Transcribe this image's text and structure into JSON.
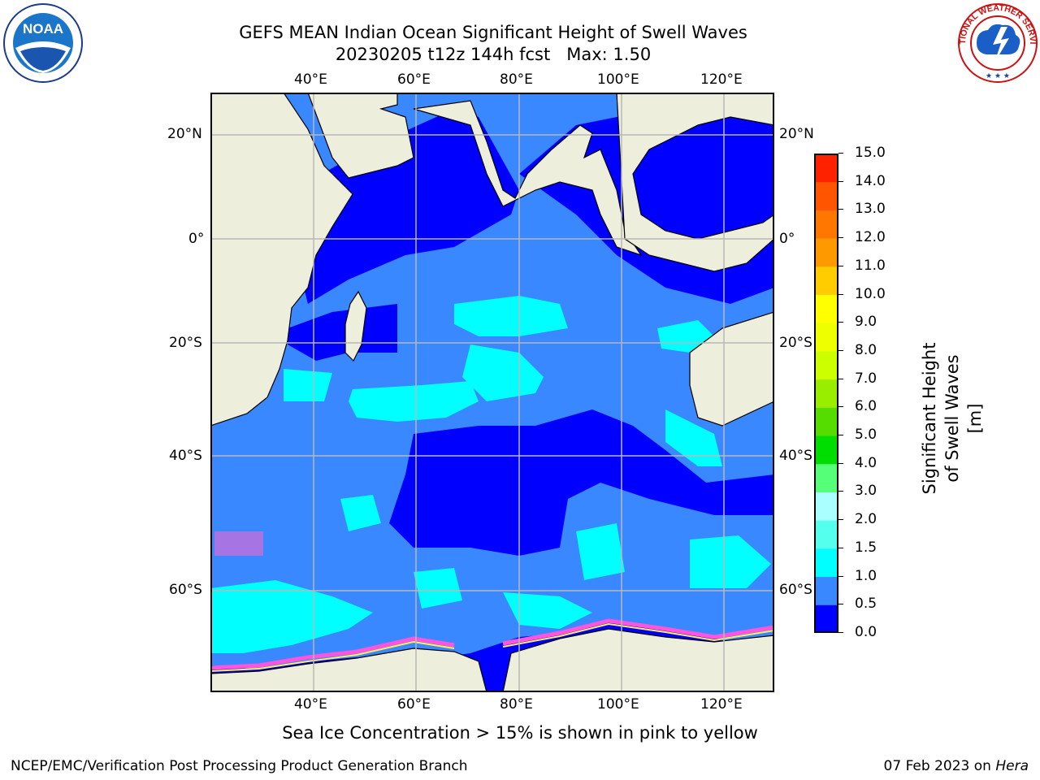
{
  "title": {
    "line1": "GEFS MEAN Indian Ocean Significant Height of Swell Waves",
    "line2": "20230205 t12z 144h fcst",
    "max": "Max: 1.50"
  },
  "logos": {
    "left": {
      "name": "noaa-logo",
      "text": "NOAA"
    },
    "right": {
      "name": "national-weather-service-logo",
      "text": "NATIONAL WEATHER SERVICE"
    }
  },
  "map": {
    "lon_labels": [
      "40°E",
      "60°E",
      "80°E",
      "100°E",
      "120°E"
    ],
    "lat_labels_left": [
      "20°N",
      "0°",
      "20°S",
      "40°S",
      "60°S"
    ],
    "lat_labels_right": [
      "20°N",
      "0°",
      "20°S",
      "40°S",
      "60°S"
    ],
    "lon_range": [
      20,
      130
    ],
    "lat_range": [
      -73,
      27
    ],
    "ocean_color": "#3a88ff",
    "land_color": "#eeeedd",
    "grid_color": "#b8b8b8"
  },
  "colorbar": {
    "title": "Significant Height of Swell Waves [m]",
    "ticks": [
      "0.0",
      "0.5",
      "1.0",
      "1.5",
      "2.0",
      "3.0",
      "4.0",
      "5.0",
      "6.0",
      "7.0",
      "8.0",
      "9.0",
      "10.0",
      "11.0",
      "12.0",
      "13.0",
      "14.0",
      "15.0"
    ],
    "colors": [
      "#0000ff",
      "#3a88ff",
      "#00ffff",
      "#55ffee",
      "#aaffff",
      "#55ff77",
      "#00dd00",
      "#55dd00",
      "#99ee00",
      "#ccff00",
      "#eeff00",
      "#ffff00",
      "#ffcc00",
      "#ff9900",
      "#ff7700",
      "#ff5500",
      "#ff2200"
    ]
  },
  "caption": "Sea Ice Concentration > 15% is shown in pink to yellow",
  "footer": {
    "left": "NCEP/EMC/Verification Post Processing Product Generation Branch",
    "right_prefix": "07 Feb 2023 on ",
    "right_host": "Hera"
  }
}
